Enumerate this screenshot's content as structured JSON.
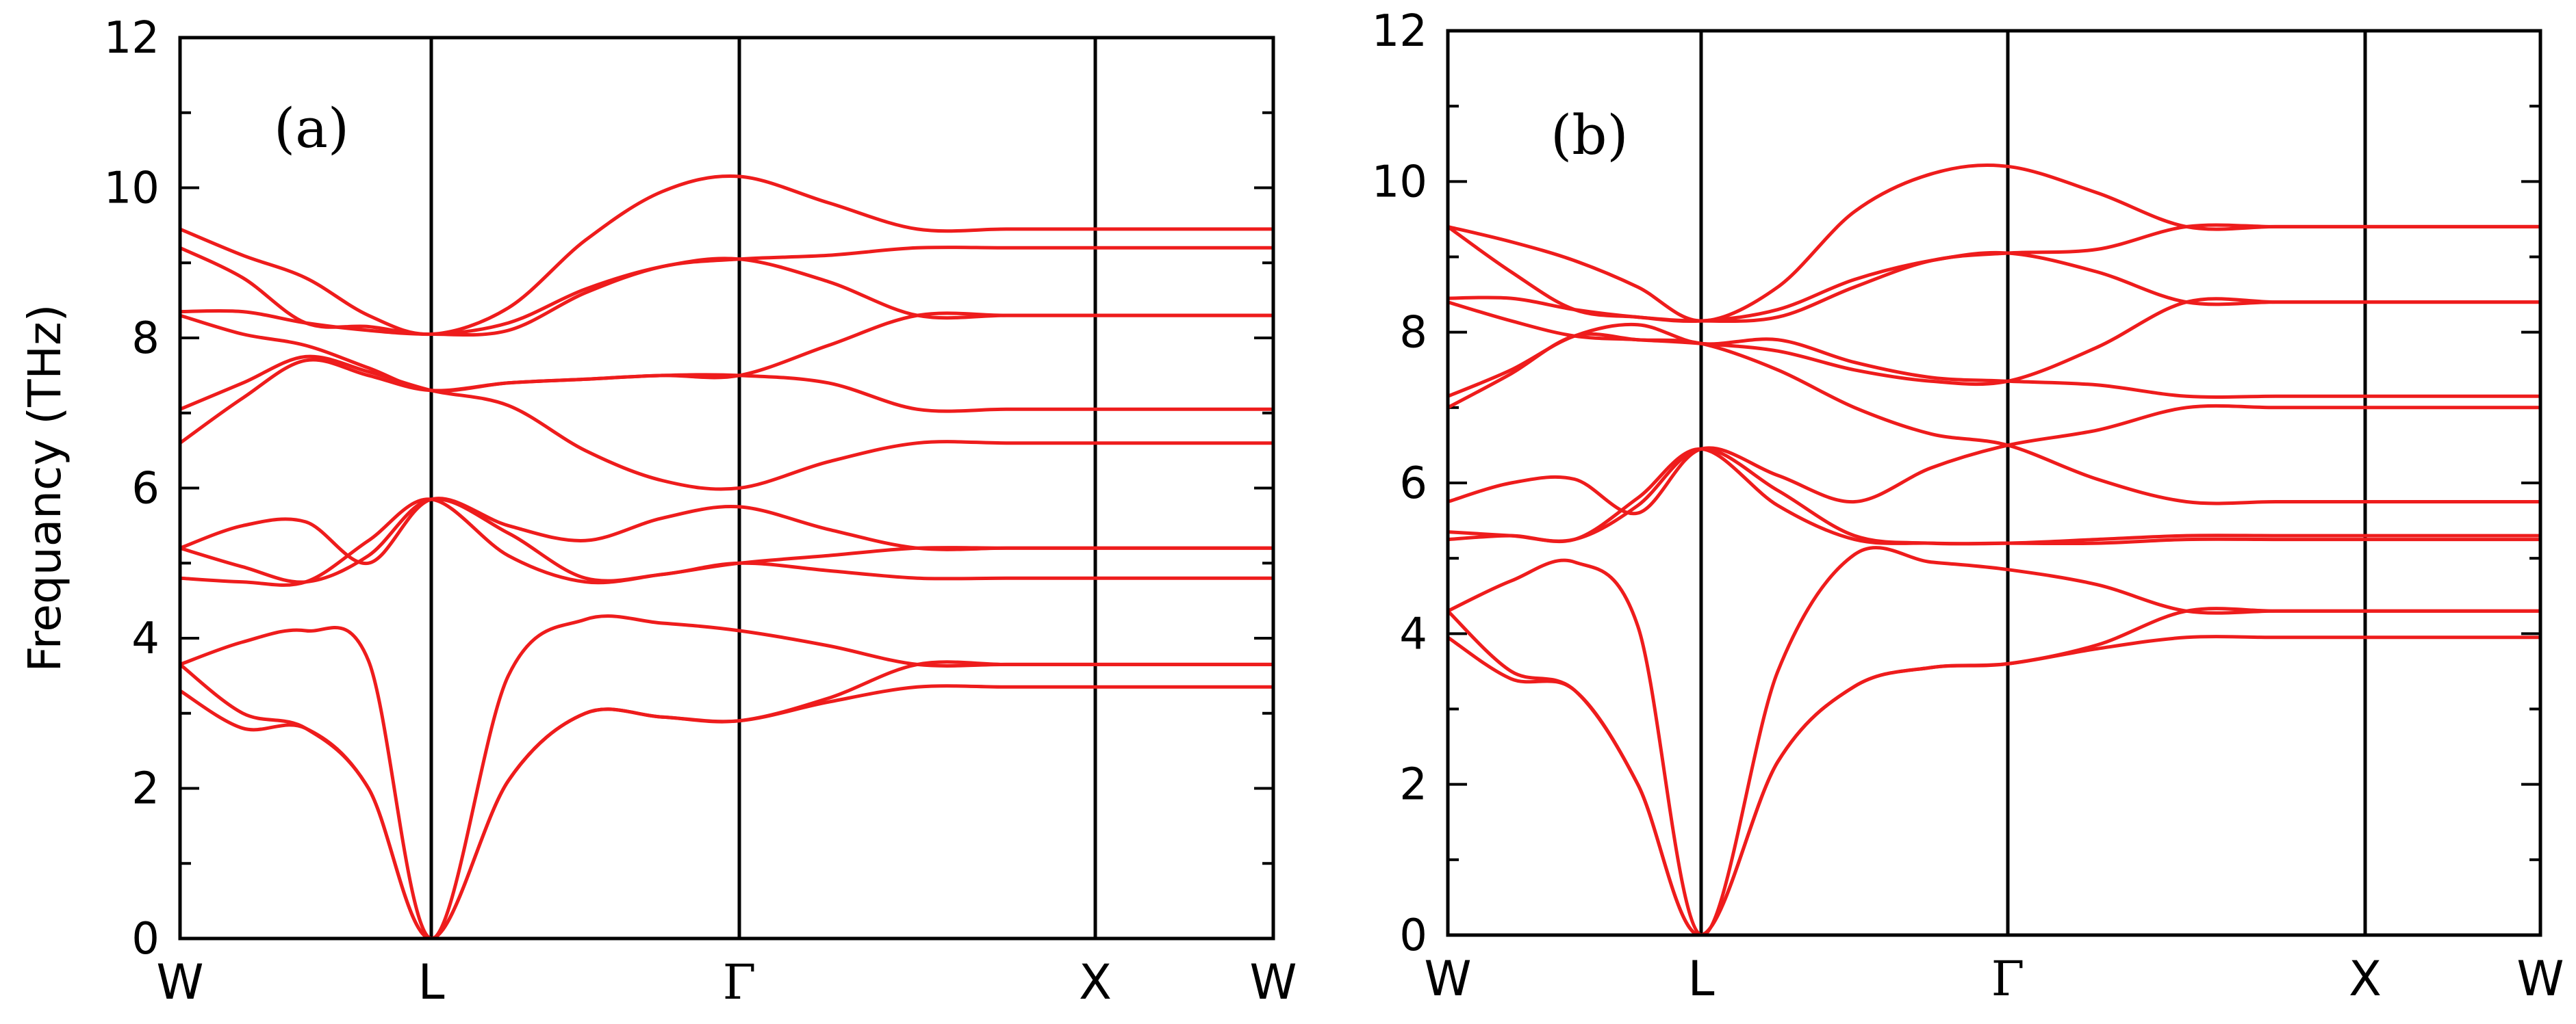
{
  "chart_data": [
    {
      "type": "line",
      "panel_label": "(a)",
      "ylabel": "Frequancy (THz)",
      "xlabel": "",
      "ylim": [
        0,
        12
      ],
      "yticks": [
        "0",
        "2",
        "4",
        "6",
        "8",
        "10",
        "12"
      ],
      "kpoints": [
        "W",
        "L",
        "Γ",
        "X",
        "W"
      ],
      "line_color": "#ee1c1c",
      "x": [
        0,
        0.25,
        0.5,
        0.75,
        1,
        1.25,
        1.5,
        1.75,
        2,
        2.25,
        2.5,
        2.75,
        3,
        3.25,
        3.5,
        3.75,
        4
      ],
      "series": [
        {
          "values": [
            3.3,
            2.8,
            2.8,
            2.0,
            0.0,
            2.1,
            3.0,
            2.95,
            2.9,
            3.15,
            3.35,
            3.35,
            3.35,
            3.35,
            3.35,
            3.35,
            3.35
          ]
        },
        {
          "values": [
            3.65,
            3.0,
            2.8,
            2.0,
            0.0,
            2.1,
            3.0,
            2.95,
            2.9,
            3.2,
            3.65,
            3.65,
            3.65,
            3.65,
            3.65,
            3.65,
            3.65
          ]
        },
        {
          "values": [
            3.65,
            3.95,
            4.1,
            3.7,
            0.0,
            3.5,
            4.25,
            4.2,
            4.1,
            3.9,
            3.65,
            3.65,
            3.65,
            3.65,
            3.65,
            3.65,
            3.65
          ]
        },
        {
          "values": [
            4.8,
            4.75,
            4.75,
            5.3,
            5.85,
            5.1,
            4.75,
            4.85,
            5.0,
            5.1,
            5.2,
            5.2,
            5.2,
            5.2,
            5.2,
            5.2,
            5.2
          ]
        },
        {
          "values": [
            5.2,
            4.95,
            4.75,
            5.1,
            5.85,
            5.4,
            4.8,
            4.85,
            5.0,
            4.9,
            4.8,
            4.8,
            4.8,
            4.8,
            4.8,
            4.8,
            4.8
          ]
        },
        {
          "values": [
            5.2,
            5.5,
            5.55,
            5.0,
            5.85,
            5.5,
            5.3,
            5.6,
            5.75,
            5.45,
            5.2,
            5.2,
            5.2,
            5.2,
            5.2,
            5.2,
            5.2
          ]
        },
        {
          "values": [
            6.6,
            7.2,
            7.7,
            7.5,
            7.3,
            7.4,
            7.45,
            7.5,
            7.5,
            7.4,
            7.05,
            7.05,
            7.05,
            7.05,
            7.05,
            7.05,
            7.05
          ]
        },
        {
          "values": [
            7.05,
            7.4,
            7.75,
            7.55,
            7.3,
            7.1,
            6.5,
            6.1,
            6.0,
            6.35,
            6.6,
            6.6,
            6.6,
            6.6,
            6.6,
            6.6,
            6.6
          ]
        },
        {
          "values": [
            8.3,
            8.05,
            7.9,
            7.6,
            7.3,
            7.4,
            7.45,
            7.5,
            7.5,
            7.9,
            8.3,
            8.3,
            8.3,
            8.3,
            8.3,
            8.3,
            8.3
          ]
        },
        {
          "values": [
            8.35,
            8.35,
            8.2,
            8.1,
            8.05,
            8.1,
            8.6,
            8.95,
            9.05,
            9.1,
            9.2,
            9.2,
            9.2,
            9.2,
            9.2,
            9.2,
            9.2
          ]
        },
        {
          "values": [
            9.2,
            8.8,
            8.2,
            8.15,
            8.05,
            8.2,
            8.65,
            8.95,
            9.05,
            8.75,
            8.3,
            8.3,
            8.3,
            8.3,
            8.3,
            8.3,
            8.3
          ]
        },
        {
          "values": [
            9.45,
            9.1,
            8.8,
            8.3,
            8.05,
            8.4,
            9.3,
            9.95,
            10.15,
            9.8,
            9.45,
            9.45,
            9.45,
            9.45,
            9.45,
            9.45,
            9.45
          ]
        }
      ]
    },
    {
      "type": "line",
      "panel_label": "(b)",
      "ylabel": "",
      "xlabel": "",
      "ylim": [
        0,
        12
      ],
      "yticks": [
        "0",
        "2",
        "4",
        "6",
        "8",
        "10",
        "12"
      ],
      "kpoints": [
        "W",
        "L",
        "Γ",
        "X",
        "W"
      ],
      "line_color": "#ee1c1c",
      "x": [
        0,
        0.25,
        0.5,
        0.75,
        1,
        1.25,
        1.5,
        1.75,
        2,
        2.25,
        2.5,
        2.75,
        3,
        3.25,
        3.5,
        3.75,
        4
      ],
      "series": [
        {
          "values": [
            3.95,
            3.4,
            3.25,
            2.0,
            0.0,
            2.3,
            3.3,
            3.55,
            3.6,
            3.8,
            3.95,
            3.95,
            3.95,
            3.95,
            3.95,
            3.95,
            3.95
          ]
        },
        {
          "values": [
            4.3,
            3.5,
            3.25,
            2.0,
            0.0,
            2.3,
            3.3,
            3.55,
            3.6,
            3.85,
            4.3,
            4.3,
            4.3,
            4.3,
            4.3,
            4.3,
            4.3
          ]
        },
        {
          "values": [
            4.3,
            4.7,
            4.95,
            4.1,
            0.0,
            3.5,
            5.05,
            4.95,
            4.85,
            4.65,
            4.3,
            4.3,
            4.3,
            4.3,
            4.3,
            4.3,
            4.3
          ]
        },
        {
          "values": [
            5.25,
            5.3,
            5.25,
            5.8,
            6.45,
            5.7,
            5.25,
            5.2,
            5.2,
            5.25,
            5.3,
            5.3,
            5.3,
            5.3,
            5.3,
            5.3,
            5.3
          ]
        },
        {
          "values": [
            5.35,
            5.3,
            5.25,
            5.7,
            6.45,
            5.9,
            5.3,
            5.2,
            5.2,
            5.2,
            5.25,
            5.25,
            5.25,
            5.25,
            5.25,
            5.25,
            5.25
          ]
        },
        {
          "values": [
            5.75,
            6.0,
            6.05,
            5.6,
            6.45,
            6.1,
            5.75,
            6.2,
            6.5,
            6.7,
            7.0,
            7.0,
            7.0,
            7.0,
            7.0,
            7.0,
            7.0
          ]
        },
        {
          "values": [
            7.0,
            7.45,
            7.95,
            7.9,
            7.85,
            7.5,
            7.0,
            6.65,
            6.5,
            6.05,
            5.75,
            5.75,
            5.75,
            5.75,
            5.75,
            5.75,
            5.75
          ]
        },
        {
          "values": [
            7.15,
            7.5,
            7.95,
            8.1,
            7.85,
            7.9,
            7.6,
            7.4,
            7.35,
            7.3,
            7.15,
            7.15,
            7.15,
            7.15,
            7.15,
            7.15,
            7.15
          ]
        },
        {
          "values": [
            8.4,
            8.15,
            7.95,
            7.9,
            7.85,
            7.75,
            7.5,
            7.35,
            7.35,
            7.8,
            8.4,
            8.4,
            8.4,
            8.4,
            8.4,
            8.4,
            8.4
          ]
        },
        {
          "values": [
            8.45,
            8.45,
            8.3,
            8.2,
            8.15,
            8.2,
            8.6,
            8.95,
            9.05,
            9.1,
            9.4,
            9.4,
            9.4,
            9.4,
            9.4,
            9.4,
            9.4
          ]
        },
        {
          "values": [
            9.4,
            8.8,
            8.3,
            8.2,
            8.15,
            8.3,
            8.7,
            8.95,
            9.05,
            8.8,
            8.4,
            8.4,
            8.4,
            8.4,
            8.4,
            8.4,
            8.4
          ]
        },
        {
          "values": [
            9.4,
            9.2,
            8.95,
            8.6,
            8.15,
            8.6,
            9.6,
            10.1,
            10.2,
            9.85,
            9.4,
            9.4,
            9.4,
            9.4,
            9.4,
            9.4,
            9.4
          ]
        }
      ]
    }
  ]
}
